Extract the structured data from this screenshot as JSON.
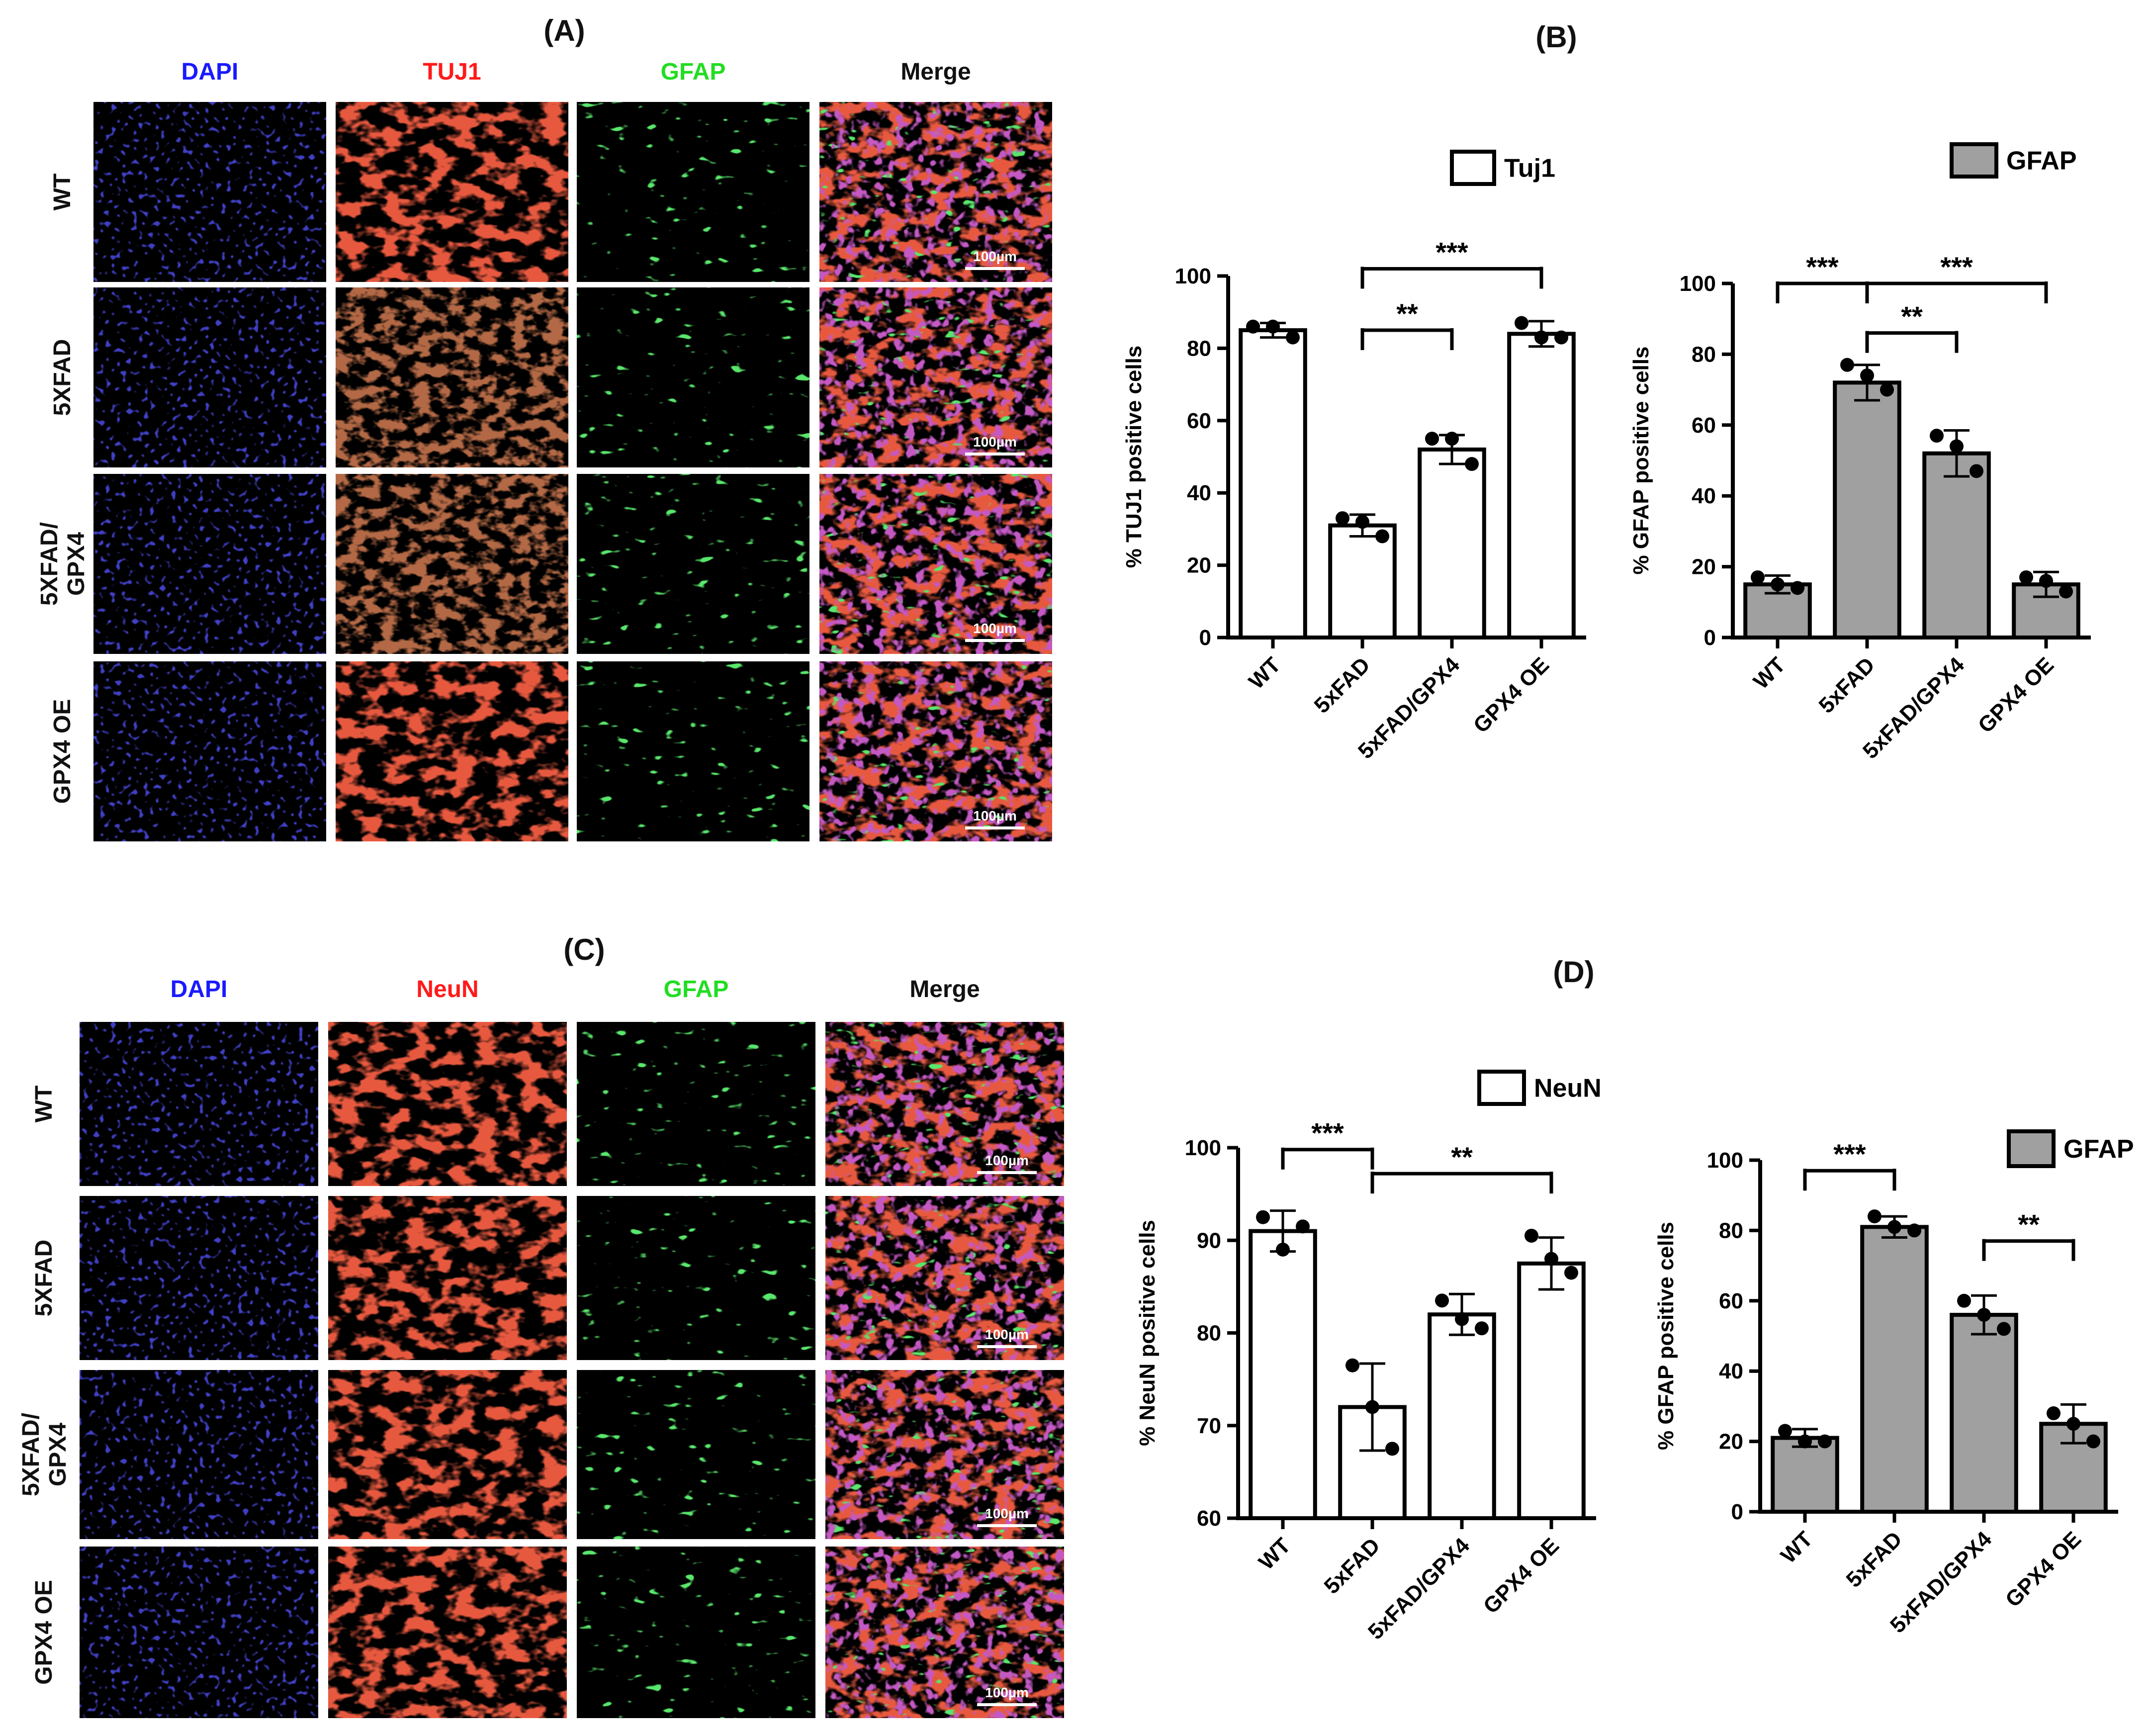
{
  "panel_labels": [
    "(A)",
    "(B)",
    "(C)",
    "(D)"
  ],
  "panel_A": {
    "columns": [
      {
        "label": "DAPI",
        "color": "#1a1aff",
        "stain": "dapi"
      },
      {
        "label": "TUJ1",
        "color": "#ff1a1a",
        "stain": "neuron"
      },
      {
        "label": "GFAP",
        "color": "#22dd22",
        "stain": "gfap"
      },
      {
        "label": "Merge",
        "color": "#111111",
        "stain": "merge"
      }
    ],
    "rows": [
      {
        "lines": [
          "WT"
        ]
      },
      {
        "lines": [
          "5XFAD"
        ]
      },
      {
        "lines": [
          "5XFAD/",
          "GPX4"
        ]
      },
      {
        "lines": [
          "GPX4 OE"
        ]
      }
    ],
    "scale_bar": "100µm"
  },
  "panel_C": {
    "columns": [
      {
        "label": "DAPI",
        "color": "#1a1aff",
        "stain": "dapi"
      },
      {
        "label": "NeuN",
        "color": "#ff1a1a",
        "stain": "neuron"
      },
      {
        "label": "GFAP",
        "color": "#22dd22",
        "stain": "gfap"
      },
      {
        "label": "Merge",
        "color": "#111111",
        "stain": "merge"
      }
    ],
    "rows": [
      {
        "lines": [
          "WT"
        ]
      },
      {
        "lines": [
          "5XFAD"
        ]
      },
      {
        "lines": [
          "5XFAD/",
          "GPX4"
        ]
      },
      {
        "lines": [
          "GPX4 OE"
        ]
      }
    ],
    "scale_bar": "100µm"
  },
  "chart_data": [
    {
      "type": "bar",
      "panel": "B",
      "legend": "Tuj1",
      "bar_color": "#ffffff",
      "ylabel": "% TUJ1 positive cells",
      "ylim": [
        0,
        100
      ],
      "yticks": [
        0,
        20,
        40,
        60,
        80,
        100
      ],
      "categories": [
        "WT",
        "5xFAD",
        "5xFAD/GPX4",
        "GPX4 OE"
      ],
      "values": [
        85,
        31,
        52,
        84
      ],
      "error": [
        2,
        3,
        4,
        3.5
      ],
      "points": [
        [
          86,
          86,
          83
        ],
        [
          33,
          32,
          28
        ],
        [
          55,
          55,
          48
        ],
        [
          87,
          83,
          83
        ]
      ],
      "significance": [
        {
          "from": 1,
          "to": 3,
          "label": "***",
          "y": 102
        },
        {
          "from": 1,
          "to": 2,
          "label": "**",
          "y": 85
        }
      ]
    },
    {
      "type": "bar",
      "panel": "B",
      "legend": "GFAP",
      "bar_color": "#a0a0a0",
      "ylabel": "% GFAP positive cells",
      "ylim": [
        0,
        100
      ],
      "yticks": [
        0,
        20,
        40,
        60,
        80,
        100
      ],
      "categories": [
        "WT",
        "5xFAD",
        "5xFAD/GPX4",
        "GPX4 OE"
      ],
      "values": [
        15,
        72,
        52,
        15
      ],
      "error": [
        2.5,
        5,
        6.5,
        3.5
      ],
      "points": [
        [
          17,
          15,
          14
        ],
        [
          77,
          74,
          70
        ],
        [
          57,
          54,
          47
        ],
        [
          17,
          16,
          13
        ]
      ],
      "significance": [
        {
          "from": 0,
          "to": 1,
          "label": "***",
          "y": 100
        },
        {
          "from": 1,
          "to": 3,
          "label": "***",
          "y": 100
        },
        {
          "from": 1,
          "to": 2,
          "label": "**",
          "y": 86
        }
      ]
    },
    {
      "type": "bar",
      "panel": "D",
      "legend": "NeuN",
      "bar_color": "#ffffff",
      "ylabel": "% NeuN positive cells",
      "ylim": [
        60,
        100
      ],
      "yticks": [
        60,
        70,
        80,
        90,
        100
      ],
      "categories": [
        "WT",
        "5xFAD",
        "5xFAD/GPX4",
        "GPX4 OE"
      ],
      "values": [
        91,
        72,
        82,
        87.5
      ],
      "error": [
        2.2,
        4.7,
        2.2,
        2.8
      ],
      "points": [
        [
          92.5,
          89,
          91.5
        ],
        [
          76.5,
          72,
          67.5
        ],
        [
          83.5,
          81.5,
          80.5
        ],
        [
          90.5,
          88,
          86.5
        ]
      ],
      "significance": [
        {
          "from": 0,
          "to": 1,
          "label": "***",
          "y": 99.8
        },
        {
          "from": 1,
          "to": 3,
          "label": "**",
          "y": 97.2
        }
      ]
    },
    {
      "type": "bar",
      "panel": "D",
      "legend": "GFAP",
      "bar_color": "#a0a0a0",
      "ylabel": "% GFAP positive cells",
      "ylim": [
        0,
        100
      ],
      "yticks": [
        0,
        20,
        40,
        60,
        80,
        100
      ],
      "categories": [
        "WT",
        "5xFAD",
        "5xFAD/GPX4",
        "GPX4 OE"
      ],
      "values": [
        21,
        81,
        56,
        25
      ],
      "error": [
        2.5,
        3,
        5.5,
        5.5
      ],
      "points": [
        [
          23,
          20,
          20
        ],
        [
          84,
          81,
          80
        ],
        [
          60,
          56,
          52
        ],
        [
          28,
          25,
          20
        ]
      ],
      "significance": [
        {
          "from": 0,
          "to": 1,
          "label": "***",
          "y": 97
        },
        {
          "from": 2,
          "to": 3,
          "label": "**",
          "y": 77
        }
      ]
    }
  ]
}
